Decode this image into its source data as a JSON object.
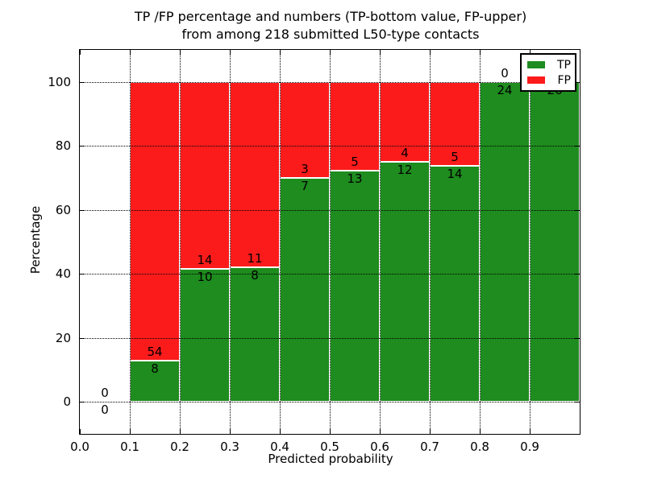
{
  "chart_data": {
    "type": "bar",
    "stacked": true,
    "title_line1": "TP /FP percentage and numbers (TP-bottom value, FP-upper)",
    "title_line2": "from among 218 submitted L50-type contacts",
    "xlabel": "Predicted probability",
    "ylabel": "Percentage",
    "xlim": [
      0.0,
      1.0
    ],
    "ylim": [
      -10,
      110
    ],
    "grid": "dotted",
    "xticks": {
      "values": [
        0.0,
        0.1,
        0.2,
        0.3,
        0.4,
        0.5,
        0.6,
        0.7,
        0.8,
        0.9
      ],
      "labels": [
        "0.0",
        "0.1",
        "0.2",
        "0.3",
        "0.4",
        "0.5",
        "0.6",
        "0.7",
        "0.8",
        "0.9"
      ]
    },
    "yticks": {
      "values": [
        0,
        20,
        40,
        60,
        80,
        100
      ],
      "labels": [
        "0",
        "20",
        "40",
        "60",
        "80",
        "100"
      ]
    },
    "bins": [
      {
        "range": [
          0.0,
          0.1
        ],
        "tp": 0,
        "fp": 0,
        "tp_percent": null
      },
      {
        "range": [
          0.1,
          0.2
        ],
        "tp": 8,
        "fp": 54,
        "tp_percent": 12.9
      },
      {
        "range": [
          0.2,
          0.3
        ],
        "tp": 10,
        "fp": 14,
        "tp_percent": 41.7
      },
      {
        "range": [
          0.3,
          0.4
        ],
        "tp": 8,
        "fp": 11,
        "tp_percent": 42.1
      },
      {
        "range": [
          0.4,
          0.5
        ],
        "tp": 7,
        "fp": 3,
        "tp_percent": 70.0
      },
      {
        "range": [
          0.5,
          0.6
        ],
        "tp": 13,
        "fp": 5,
        "tp_percent": 72.2
      },
      {
        "range": [
          0.6,
          0.7
        ],
        "tp": 12,
        "fp": 4,
        "tp_percent": 75.0
      },
      {
        "range": [
          0.7,
          0.8
        ],
        "tp": 14,
        "fp": 5,
        "tp_percent": 73.7
      },
      {
        "range": [
          0.8,
          0.9
        ],
        "tp": 24,
        "fp": 0,
        "tp_percent": 100.0
      },
      {
        "range": [
          0.9,
          1.0
        ],
        "tp": 26,
        "fp": 0,
        "tp_percent": 100.0
      }
    ],
    "legend": {
      "position": "upper-right",
      "items": [
        {
          "label": "TP",
          "color": "#1E8C1E"
        },
        {
          "label": "FP",
          "color": "#FB1B1B"
        }
      ]
    },
    "colors": {
      "tp": "#1E8C1E",
      "fp": "#FB1B1B",
      "bar_edge": "#ffffff",
      "grid": "#000000",
      "text": "#000000",
      "background": "#ffffff"
    }
  }
}
